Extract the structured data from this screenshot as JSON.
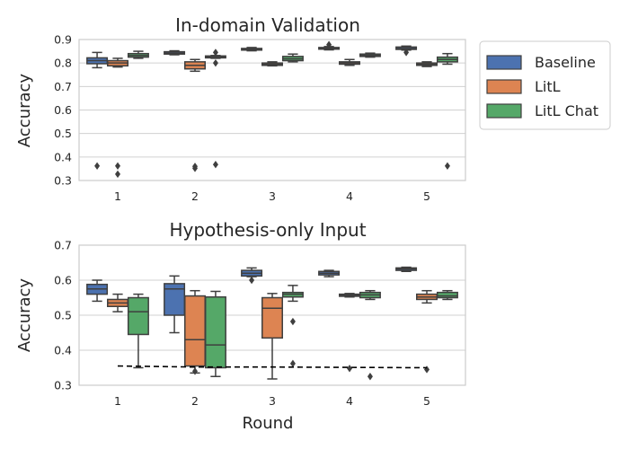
{
  "chart_data": [
    {
      "type": "box",
      "title": "In-domain Validation",
      "xlabel": "",
      "ylabel": "Accuracy",
      "categories": [
        "1",
        "2",
        "3",
        "4",
        "5"
      ],
      "ylim": [
        0.3,
        0.9
      ],
      "yticks": [
        "0.3",
        "0.4",
        "0.5",
        "0.6",
        "0.7",
        "0.8",
        "0.9"
      ],
      "grid": true,
      "legend": {
        "placement": "outside-right",
        "entries": [
          "Baseline",
          "LitL",
          "LitL Chat"
        ]
      },
      "series": [
        {
          "name": "Baseline",
          "color": "#4c72b0",
          "boxes": [
            {
              "min": 0.78,
              "q1": 0.797,
              "median": 0.81,
              "q3": 0.822,
              "max": 0.845,
              "outliers": [
                0.362
              ]
            },
            {
              "min": 0.835,
              "q1": 0.838,
              "median": 0.842,
              "q3": 0.848,
              "max": 0.852,
              "outliers": []
            },
            {
              "min": 0.852,
              "q1": 0.855,
              "median": 0.858,
              "q3": 0.862,
              "max": 0.866,
              "outliers": []
            },
            {
              "min": 0.856,
              "q1": 0.859,
              "median": 0.862,
              "q3": 0.866,
              "max": 0.87,
              "outliers": [
                0.878
              ]
            },
            {
              "min": 0.855,
              "q1": 0.858,
              "median": 0.862,
              "q3": 0.868,
              "max": 0.872,
              "outliers": [
                0.845
              ]
            }
          ]
        },
        {
          "name": "LitL",
          "color": "#dd8452",
          "boxes": [
            {
              "min": 0.783,
              "q1": 0.788,
              "median": 0.8,
              "q3": 0.81,
              "max": 0.82,
              "outliers": [
                0.362,
                0.327
              ]
            },
            {
              "min": 0.765,
              "q1": 0.775,
              "median": 0.79,
              "q3": 0.805,
              "max": 0.815,
              "outliers": [
                0.36,
                0.352
              ]
            },
            {
              "min": 0.788,
              "q1": 0.79,
              "median": 0.795,
              "q3": 0.8,
              "max": 0.805,
              "outliers": []
            },
            {
              "min": 0.79,
              "q1": 0.795,
              "median": 0.8,
              "q3": 0.805,
              "max": 0.815,
              "outliers": []
            },
            {
              "min": 0.785,
              "q1": 0.79,
              "median": 0.795,
              "q3": 0.8,
              "max": 0.805,
              "outliers": []
            }
          ]
        },
        {
          "name": "LitL Chat",
          "color": "#55a868",
          "boxes": [
            {
              "min": 0.82,
              "q1": 0.825,
              "median": 0.832,
              "q3": 0.84,
              "max": 0.85,
              "outliers": []
            },
            {
              "min": 0.82,
              "q1": 0.822,
              "median": 0.825,
              "q3": 0.83,
              "max": 0.832,
              "outliers": [
                0.845,
                0.8,
                0.368
              ]
            },
            {
              "min": 0.805,
              "q1": 0.81,
              "median": 0.818,
              "q3": 0.828,
              "max": 0.838,
              "outliers": []
            },
            {
              "min": 0.825,
              "q1": 0.828,
              "median": 0.832,
              "q3": 0.838,
              "max": 0.842,
              "outliers": []
            },
            {
              "min": 0.795,
              "q1": 0.805,
              "median": 0.815,
              "q3": 0.825,
              "max": 0.84,
              "outliers": [
                0.362
              ]
            }
          ]
        }
      ]
    },
    {
      "type": "box",
      "title": "Hypothesis-only Input",
      "xlabel": "Round",
      "ylabel": "Accuracy",
      "categories": [
        "1",
        "2",
        "3",
        "4",
        "5"
      ],
      "ylim": [
        0.3,
        0.7
      ],
      "yticks": [
        "0.3",
        "0.4",
        "0.5",
        "0.6",
        "0.7"
      ],
      "grid": true,
      "series": [
        {
          "name": "Baseline",
          "color": "#4c72b0",
          "boxes": [
            {
              "min": 0.54,
              "q1": 0.56,
              "median": 0.575,
              "q3": 0.588,
              "max": 0.6,
              "outliers": []
            },
            {
              "min": 0.45,
              "q1": 0.5,
              "median": 0.575,
              "q3": 0.59,
              "max": 0.612,
              "outliers": []
            },
            {
              "min": 0.61,
              "q1": 0.612,
              "median": 0.62,
              "q3": 0.628,
              "max": 0.635,
              "outliers": [
                0.6
              ]
            },
            {
              "min": 0.61,
              "q1": 0.615,
              "median": 0.62,
              "q3": 0.625,
              "max": 0.628,
              "outliers": []
            },
            {
              "min": 0.625,
              "q1": 0.628,
              "median": 0.632,
              "q3": 0.635,
              "max": 0.637,
              "outliers": []
            }
          ]
        },
        {
          "name": "LitL",
          "color": "#dd8452",
          "boxes": [
            {
              "min": 0.51,
              "q1": 0.525,
              "median": 0.535,
              "q3": 0.545,
              "max": 0.56,
              "outliers": []
            },
            {
              "min": 0.335,
              "q1": 0.355,
              "median": 0.43,
              "q3": 0.555,
              "max": 0.57,
              "outliers": [
                0.34
              ]
            },
            {
              "min": 0.318,
              "q1": 0.435,
              "median": 0.52,
              "q3": 0.55,
              "max": 0.562,
              "outliers": []
            },
            {
              "min": 0.552,
              "q1": 0.554,
              "median": 0.557,
              "q3": 0.56,
              "max": 0.562,
              "outliers": [
                0.348
              ]
            },
            {
              "min": 0.535,
              "q1": 0.545,
              "median": 0.552,
              "q3": 0.56,
              "max": 0.57,
              "outliers": [
                0.345
              ]
            }
          ]
        },
        {
          "name": "LitL Chat",
          "color": "#55a868",
          "boxes": [
            {
              "min": 0.35,
              "q1": 0.445,
              "median": 0.51,
              "q3": 0.55,
              "max": 0.56,
              "outliers": []
            },
            {
              "min": 0.325,
              "q1": 0.35,
              "median": 0.415,
              "q3": 0.552,
              "max": 0.568,
              "outliers": []
            },
            {
              "min": 0.54,
              "q1": 0.552,
              "median": 0.56,
              "q3": 0.565,
              "max": 0.585,
              "outliers": [
                0.482,
                0.362
              ]
            },
            {
              "min": 0.545,
              "q1": 0.55,
              "median": 0.558,
              "q3": 0.565,
              "max": 0.57,
              "outliers": [
                0.325
              ]
            },
            {
              "min": 0.545,
              "q1": 0.55,
              "median": 0.555,
              "q3": 0.565,
              "max": 0.57,
              "outliers": []
            }
          ]
        }
      ],
      "reference_line": {
        "style": "dashed",
        "color": "#000000",
        "values": [
          0.355,
          0.352,
          0.352,
          0.351,
          0.35
        ]
      }
    }
  ]
}
